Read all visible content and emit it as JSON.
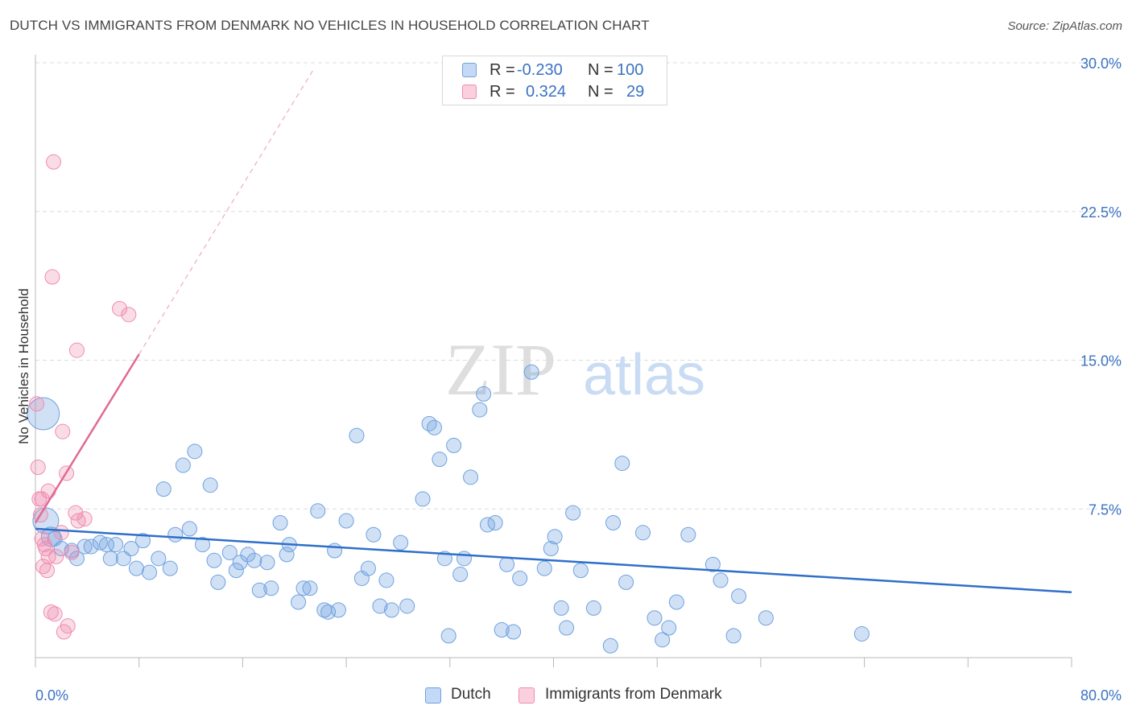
{
  "header": {
    "title": "DUTCH VS IMMIGRANTS FROM DENMARK NO VEHICLES IN HOUSEHOLD CORRELATION CHART",
    "source": "Source: ZipAtlas.com"
  },
  "watermark": {
    "zip": "ZIP",
    "atlas": "atlas"
  },
  "legend": {
    "r_label": "R =",
    "n_label": "N =",
    "rows": [
      {
        "r": "-0.230",
        "n": "100",
        "color": "#6fa1e0"
      },
      {
        "r": "0.324",
        "n": "29",
        "color": "#f08cae"
      }
    ]
  },
  "bottom_legend": {
    "dutch": "Dutch",
    "denmark": "Immigrants from Denmark"
  },
  "chart_data": {
    "type": "scatter",
    "title": "DUTCH VS IMMIGRANTS FROM DENMARK NO VEHICLES IN HOUSEHOLD CORRELATION CHART",
    "ylabel": "No Vehicles in Household",
    "xlabel": "",
    "xlim": [
      0,
      80
    ],
    "ylim": [
      0,
      30
    ],
    "x_tick_labels": [
      "0.0%",
      "80.0%"
    ],
    "y_tick_values": [
      7.5,
      15,
      22.5,
      30
    ],
    "y_tick_labels": [
      "7.5%",
      "15.0%",
      "22.5%",
      "30.0%"
    ],
    "grid": true,
    "colors": {
      "dutch": "#6fa1e0",
      "denmark": "#f08cae",
      "dutch_line": "#2f6fca",
      "denmark_line": "#e06a95",
      "tick_label": "#3a72c4"
    },
    "series": [
      {
        "name": "Dutch",
        "r": -0.23,
        "n": 100,
        "trend": {
          "x0": 0,
          "y0": 6.5,
          "x1": 80,
          "y1": 3.3
        },
        "points": [
          [
            0.6,
            12.3,
            20
          ],
          [
            0.8,
            6.9,
            16
          ],
          [
            1.2,
            6.1,
            12
          ],
          [
            1.5,
            6.0,
            9
          ],
          [
            2.0,
            5.5,
            9
          ],
          [
            2.8,
            5.4,
            9
          ],
          [
            3.2,
            5.0,
            9
          ],
          [
            3.8,
            5.6,
            9
          ],
          [
            4.3,
            5.6,
            9
          ],
          [
            5.0,
            5.8,
            9
          ],
          [
            5.5,
            5.7,
            9
          ],
          [
            5.8,
            5.0,
            9
          ],
          [
            6.2,
            5.7,
            9
          ],
          [
            6.8,
            5.0,
            9
          ],
          [
            7.4,
            5.5,
            9
          ],
          [
            7.8,
            4.5,
            9
          ],
          [
            8.3,
            5.9,
            9
          ],
          [
            8.8,
            4.3,
            9
          ],
          [
            9.5,
            5.0,
            9
          ],
          [
            9.9,
            8.5,
            9
          ],
          [
            10.4,
            4.5,
            9
          ],
          [
            10.8,
            6.2,
            9
          ],
          [
            11.4,
            9.7,
            9
          ],
          [
            11.9,
            6.5,
            9
          ],
          [
            12.3,
            10.4,
            9
          ],
          [
            12.9,
            5.7,
            9
          ],
          [
            13.5,
            8.7,
            9
          ],
          [
            13.8,
            4.9,
            9
          ],
          [
            14.1,
            3.8,
            9
          ],
          [
            15.0,
            5.3,
            9
          ],
          [
            15.5,
            4.4,
            9
          ],
          [
            15.8,
            4.8,
            9
          ],
          [
            16.4,
            5.2,
            9
          ],
          [
            16.9,
            4.9,
            9
          ],
          [
            17.3,
            3.4,
            9
          ],
          [
            17.9,
            4.8,
            9
          ],
          [
            18.2,
            3.5,
            9
          ],
          [
            18.9,
            6.8,
            9
          ],
          [
            19.4,
            5.2,
            9
          ],
          [
            19.6,
            5.7,
            9
          ],
          [
            20.3,
            2.8,
            9
          ],
          [
            20.7,
            3.5,
            9
          ],
          [
            21.2,
            3.5,
            9
          ],
          [
            21.8,
            7.4,
            9
          ],
          [
            22.3,
            2.4,
            9
          ],
          [
            22.6,
            2.3,
            9
          ],
          [
            23.1,
            5.4,
            9
          ],
          [
            23.4,
            2.4,
            9
          ],
          [
            24.0,
            6.9,
            9
          ],
          [
            24.8,
            11.2,
            9
          ],
          [
            25.2,
            4.0,
            9
          ],
          [
            25.7,
            4.5,
            9
          ],
          [
            26.1,
            6.2,
            9
          ],
          [
            26.6,
            2.6,
            9
          ],
          [
            27.1,
            3.9,
            9
          ],
          [
            27.5,
            2.4,
            9
          ],
          [
            28.2,
            5.8,
            9
          ],
          [
            28.7,
            2.6,
            9
          ],
          [
            29.9,
            8.0,
            9
          ],
          [
            30.4,
            11.8,
            9
          ],
          [
            30.8,
            11.6,
            9
          ],
          [
            31.2,
            10.0,
            9
          ],
          [
            31.6,
            5.0,
            9
          ],
          [
            31.9,
            1.1,
            9
          ],
          [
            32.3,
            10.7,
            9
          ],
          [
            32.8,
            4.2,
            9
          ],
          [
            33.1,
            5.0,
            9
          ],
          [
            33.6,
            9.1,
            9
          ],
          [
            34.3,
            12.5,
            9
          ],
          [
            34.6,
            13.3,
            9
          ],
          [
            34.9,
            6.7,
            9
          ],
          [
            35.5,
            6.8,
            9
          ],
          [
            36.0,
            1.4,
            9
          ],
          [
            36.4,
            4.7,
            9
          ],
          [
            36.9,
            1.3,
            9
          ],
          [
            37.4,
            4.0,
            9
          ],
          [
            38.3,
            14.4,
            9
          ],
          [
            39.3,
            4.5,
            9
          ],
          [
            39.8,
            5.5,
            9
          ],
          [
            40.1,
            6.1,
            9
          ],
          [
            40.6,
            2.5,
            9
          ],
          [
            41.0,
            1.5,
            9
          ],
          [
            41.5,
            7.3,
            9
          ],
          [
            42.1,
            4.4,
            9
          ],
          [
            43.1,
            2.5,
            9
          ],
          [
            44.4,
            0.6,
            9
          ],
          [
            44.6,
            6.8,
            9
          ],
          [
            45.3,
            9.8,
            9
          ],
          [
            45.6,
            3.8,
            9
          ],
          [
            46.9,
            6.3,
            9
          ],
          [
            47.8,
            2.0,
            9
          ],
          [
            48.4,
            0.9,
            9
          ],
          [
            48.9,
            1.5,
            9
          ],
          [
            49.5,
            2.8,
            9
          ],
          [
            50.4,
            6.2,
            9
          ],
          [
            52.3,
            4.7,
            9
          ],
          [
            52.9,
            3.9,
            9
          ],
          [
            53.9,
            1.1,
            9
          ],
          [
            54.3,
            3.1,
            9
          ],
          [
            56.4,
            2.0,
            9
          ],
          [
            63.8,
            1.2,
            9
          ]
        ]
      },
      {
        "name": "Immigrants from Denmark",
        "r": 0.324,
        "n": 29,
        "trend": {
          "x0": 0,
          "y0": 6.8,
          "x1": 8.0,
          "y1": 15.3,
          "dashed_to_x": 21.5,
          "dashed_to_y": 29.7
        },
        "points": [
          [
            0.1,
            12.8,
            9
          ],
          [
            0.2,
            9.6,
            9
          ],
          [
            0.3,
            8.0,
            9
          ],
          [
            0.4,
            7.2,
            9
          ],
          [
            0.5,
            8.0,
            9
          ],
          [
            0.5,
            6.0,
            9
          ],
          [
            0.6,
            4.6,
            9
          ],
          [
            0.7,
            5.7,
            9
          ],
          [
            0.8,
            5.5,
            9
          ],
          [
            0.9,
            4.4,
            9
          ],
          [
            1.0,
            8.4,
            9
          ],
          [
            1.0,
            5.1,
            9
          ],
          [
            1.2,
            2.3,
            9
          ],
          [
            1.3,
            19.2,
            9
          ],
          [
            1.4,
            25.0,
            9
          ],
          [
            1.5,
            2.2,
            9
          ],
          [
            1.6,
            5.1,
            9
          ],
          [
            2.0,
            6.3,
            9
          ],
          [
            2.1,
            11.4,
            9
          ],
          [
            2.2,
            1.3,
            9
          ],
          [
            2.4,
            9.3,
            9
          ],
          [
            2.5,
            1.6,
            9
          ],
          [
            2.8,
            5.3,
            9
          ],
          [
            3.1,
            7.3,
            9
          ],
          [
            3.2,
            15.5,
            9
          ],
          [
            3.3,
            6.9,
            9
          ],
          [
            3.8,
            7.0,
            9
          ],
          [
            6.5,
            17.6,
            9
          ],
          [
            7.2,
            17.3,
            9
          ]
        ]
      }
    ]
  }
}
